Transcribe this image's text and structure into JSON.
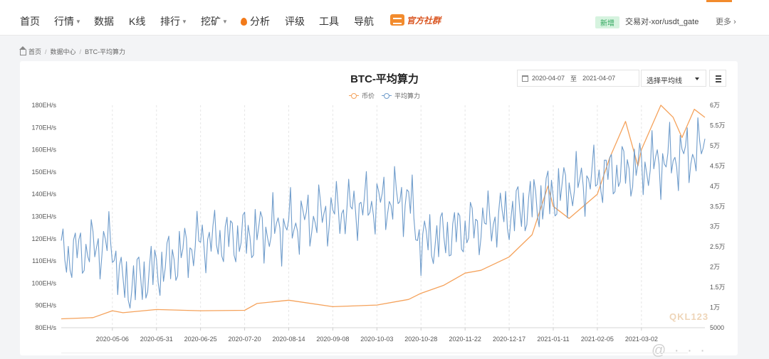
{
  "nav": {
    "items": [
      {
        "label": "首页",
        "caret": false
      },
      {
        "label": "行情",
        "caret": true
      },
      {
        "label": "数据",
        "caret": false
      },
      {
        "label": "K线",
        "caret": false
      },
      {
        "label": "排行",
        "caret": true
      },
      {
        "label": "挖矿",
        "caret": true
      },
      {
        "label": "分析",
        "caret": false,
        "icon": "fire-icon"
      },
      {
        "label": "评级",
        "caret": false
      },
      {
        "label": "工具",
        "caret": false
      },
      {
        "label": "导航",
        "caret": false
      }
    ],
    "community_label": "官方社群",
    "news_badge": "新增",
    "news_text": "交易对-xor/usdt_gate",
    "more_label": "更多",
    "accent_color": "#f28b2d"
  },
  "breadcrumb": [
    "首页",
    "数据中心",
    "BTC-平均算力"
  ],
  "chart_controls": {
    "start_date": "2020-04-07",
    "to_label": "至",
    "end_date": "2021-04-07",
    "select_label": "选择平均线"
  },
  "watermark": "QKL123",
  "chart_data": {
    "type": "line",
    "title": "BTC-平均算力",
    "series": [
      {
        "name": "币价",
        "color": "#f5a25b",
        "axis": "right"
      },
      {
        "name": "平均算力",
        "color": "#6f9ccb",
        "axis": "left"
      }
    ],
    "left_axis": {
      "ticks": [
        "180EH/s",
        "170EH/s",
        "160EH/s",
        "150EH/s",
        "140EH/s",
        "130EH/s",
        "120EH/s",
        "110EH/s",
        "100EH/s",
        "90EH/s",
        "80EH/s"
      ],
      "range": [
        80,
        180
      ],
      "unit": "EH/s"
    },
    "right_axis": {
      "ticks": [
        "6万",
        "5.5万",
        "5万",
        "4.5万",
        "4万",
        "3.5万",
        "3万",
        "2.5万",
        "2万",
        "1.5万",
        "1万",
        "5000"
      ],
      "range": [
        5000,
        60000
      ]
    },
    "x_ticks": [
      "2020-05-06",
      "2020-05-31",
      "2020-06-25",
      "2020-07-20",
      "2020-08-14",
      "2020-09-08",
      "2020-10-03",
      "2020-10-28",
      "2020-11-22",
      "2020-12-17",
      "2021-01-11",
      "2021-02-05",
      "2021-03-02"
    ],
    "x_range": [
      "2020-04-07",
      "2021-04-07"
    ],
    "price_points": [
      [
        "2020-04-07",
        7200
      ],
      [
        "2020-04-25",
        7500
      ],
      [
        "2020-05-06",
        9200
      ],
      [
        "2020-05-12",
        8700
      ],
      [
        "2020-05-31",
        9500
      ],
      [
        "2020-06-25",
        9200
      ],
      [
        "2020-07-20",
        9300
      ],
      [
        "2020-07-27",
        11000
      ],
      [
        "2020-08-14",
        11800
      ],
      [
        "2020-09-08",
        10200
      ],
      [
        "2020-10-03",
        10600
      ],
      [
        "2020-10-21",
        12000
      ],
      [
        "2020-10-28",
        13500
      ],
      [
        "2020-11-10",
        15500
      ],
      [
        "2020-11-22",
        18500
      ],
      [
        "2020-12-01",
        19200
      ],
      [
        "2020-12-17",
        22500
      ],
      [
        "2020-12-30",
        28000
      ],
      [
        "2021-01-08",
        40000
      ],
      [
        "2021-01-11",
        35000
      ],
      [
        "2021-01-20",
        32000
      ],
      [
        "2021-02-05",
        38000
      ],
      [
        "2021-02-12",
        47000
      ],
      [
        "2021-02-21",
        56000
      ],
      [
        "2021-02-28",
        45000
      ],
      [
        "2021-03-02",
        49000
      ],
      [
        "2021-03-13",
        60000
      ],
      [
        "2021-03-20",
        57000
      ],
      [
        "2021-03-25",
        52000
      ],
      [
        "2021-04-01",
        59000
      ],
      [
        "2021-04-07",
        57000
      ]
    ],
    "hashrate_trend": [
      [
        "2020-04-07",
        112
      ],
      [
        "2020-05-06",
        118
      ],
      [
        "2020-05-12",
        98
      ],
      [
        "2020-05-31",
        106
      ],
      [
        "2020-06-25",
        119
      ],
      [
        "2020-07-20",
        121
      ],
      [
        "2020-08-14",
        126
      ],
      [
        "2020-09-08",
        132
      ],
      [
        "2020-10-03",
        136
      ],
      [
        "2020-10-21",
        138
      ],
      [
        "2020-10-28",
        118
      ],
      [
        "2020-11-22",
        124
      ],
      [
        "2020-12-17",
        131
      ],
      [
        "2021-01-11",
        140
      ],
      [
        "2021-02-05",
        148
      ],
      [
        "2021-03-02",
        152
      ],
      [
        "2021-04-07",
        160
      ]
    ],
    "grid": "vertical dashed",
    "legend_position": "top-center"
  }
}
